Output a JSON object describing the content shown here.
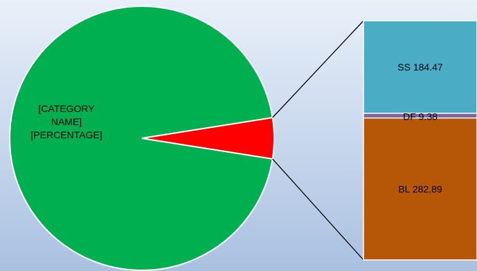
{
  "chart_data": {
    "type": "bar-of-pie",
    "pie": {
      "slices": [
        {
          "label_lines": [
            "[CATEGORY",
            "NAME]",
            "[PERCENTAGE]"
          ],
          "color": "#00b050"
        },
        {
          "label_lines": [],
          "color": "#ff0000"
        }
      ]
    },
    "stack": {
      "segments": [
        {
          "name": "SS",
          "value": 184.47,
          "label": "SS 184.47",
          "color": "#4bacc6"
        },
        {
          "name": "DF",
          "value": 9.38,
          "label": "DF 9.38",
          "color": "#8064a2"
        },
        {
          "name": "BL",
          "value": 282.89,
          "label": "BL 282.89",
          "color": "#b65708"
        }
      ]
    },
    "legend": "none",
    "grid": false
  }
}
